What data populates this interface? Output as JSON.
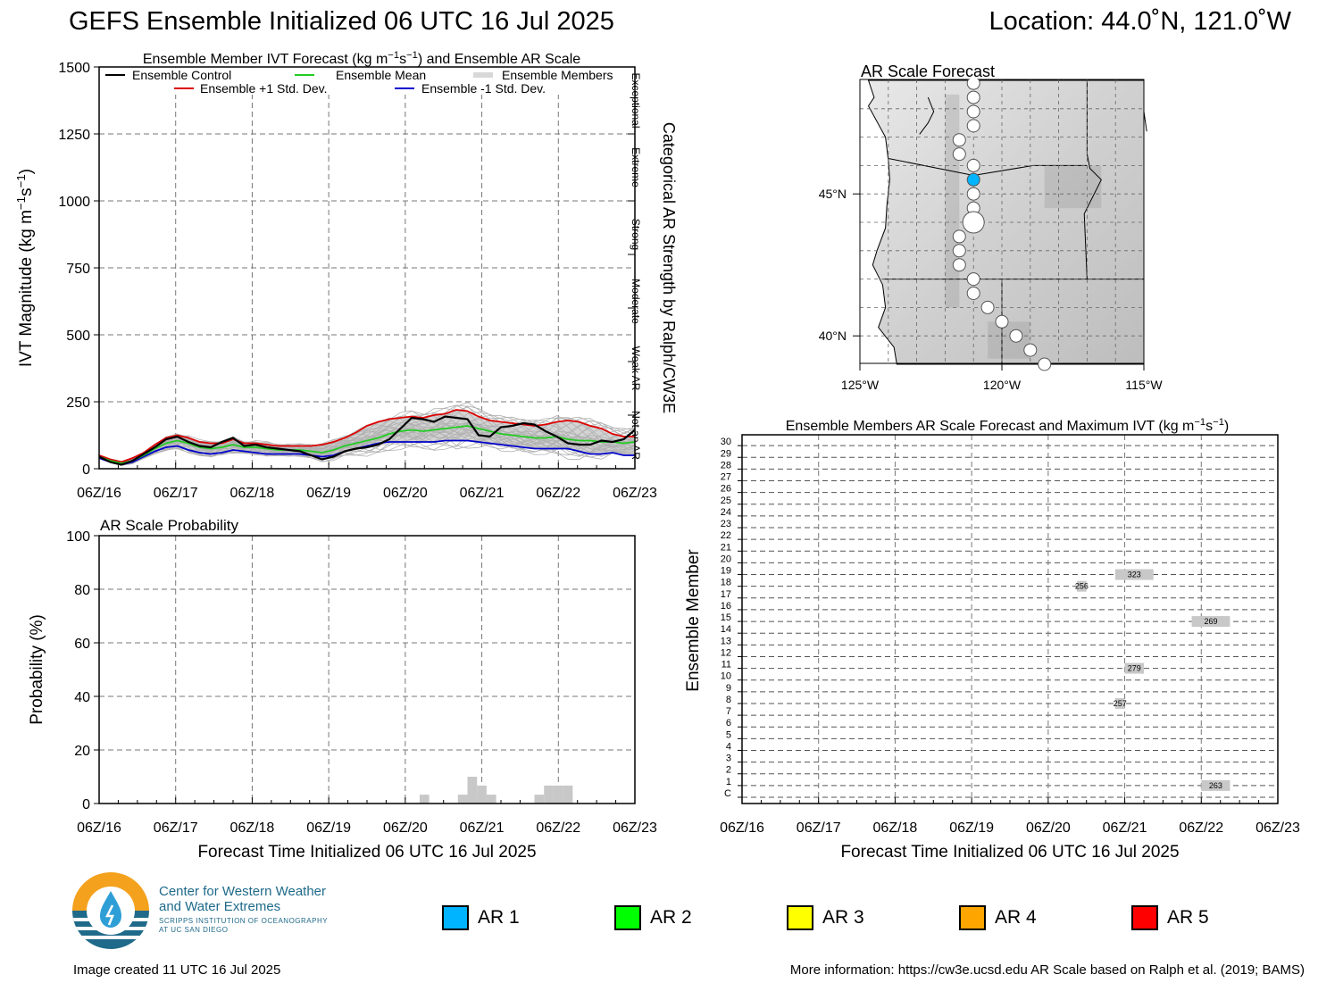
{
  "header": {
    "title": "GEFS Ensemble Initialized 06 UTC 16 Jul 2025",
    "location": "Location: 44.0˚N, 121.0˚W"
  },
  "colors": {
    "control": "#000000",
    "mean": "#22cc22",
    "plus1": "#dd0000",
    "minus1": "#0000cc",
    "members": "#b0b0b0",
    "spread": "#c8c8c8",
    "ar1": "#00b4ff",
    "ar2": "#00ff00",
    "ar3": "#ffff00",
    "ar4": "#ffa500",
    "ar5": "#ff0000"
  },
  "time_ticks": [
    "06Z/16",
    "06Z/17",
    "06Z/18",
    "06Z/19",
    "06Z/20",
    "06Z/21",
    "06Z/22",
    "06Z/23"
  ],
  "chart_data": [
    {
      "type": "line",
      "title": "Ensemble Member IVT Forecast (kg m⁻¹s⁻¹) and Ensemble AR Scale",
      "ylabel": "IVT Magnitude (kg m⁻¹s⁻¹)",
      "right_label": "Categorical AR Strength by Ralph/CW3E",
      "ylim": [
        0,
        1500
      ],
      "yticks": [
        "0",
        "250",
        "500",
        "750",
        "1000",
        "1250",
        "1500"
      ],
      "xlim_hours": [
        0,
        168
      ],
      "x_step_hours": 6,
      "categories_right": [
        "Not an AR",
        "Weak AR",
        "Moderate",
        "Strong",
        "Extreme",
        "Exceptional"
      ],
      "legend": {
        "control": "Ensemble Control",
        "mean": "Ensemble Mean",
        "members": "Ensemble Members",
        "plus1": "Ensemble +1 Std. Dev.",
        "minus1": "Ensemble -1 Std. Dev."
      },
      "series": [
        {
          "name": "Ensemble Control",
          "values": [
            45,
            25,
            15,
            30,
            55,
            80,
            110,
            120,
            100,
            85,
            80,
            100,
            115,
            85,
            90,
            80,
            75,
            70,
            65,
            50,
            35,
            45,
            65,
            75,
            80,
            90,
            110,
            150,
            190,
            185,
            175,
            195,
            190,
            185,
            125,
            120,
            155,
            160,
            170,
            165,
            140,
            120,
            95,
            90,
            90,
            105,
            100,
            110,
            145
          ]
        },
        {
          "name": "Ensemble Mean",
          "values": [
            45,
            30,
            20,
            30,
            50,
            75,
            95,
            105,
            95,
            80,
            75,
            80,
            90,
            80,
            80,
            75,
            70,
            70,
            70,
            65,
            60,
            70,
            85,
            95,
            105,
            115,
            130,
            140,
            145,
            140,
            145,
            150,
            155,
            160,
            150,
            140,
            130,
            125,
            120,
            115,
            115,
            120,
            110,
            105,
            105,
            100,
            100,
            95,
            100
          ]
        },
        {
          "name": "Ensemble +1 Std. Dev.",
          "values": [
            50,
            35,
            25,
            40,
            60,
            90,
            115,
            125,
            115,
            100,
            95,
            95,
            110,
            95,
            95,
            90,
            85,
            85,
            85,
            85,
            90,
            100,
            115,
            135,
            160,
            175,
            185,
            190,
            195,
            190,
            200,
            205,
            220,
            215,
            195,
            180,
            175,
            170,
            165,
            160,
            165,
            175,
            180,
            175,
            160,
            150,
            130,
            120,
            120
          ]
        },
        {
          "name": "Ensemble -1 Std. Dev.",
          "values": [
            40,
            25,
            15,
            25,
            45,
            65,
            80,
            85,
            70,
            60,
            55,
            60,
            70,
            65,
            60,
            55,
            55,
            55,
            55,
            50,
            45,
            50,
            65,
            75,
            85,
            95,
            100,
            100,
            100,
            100,
            100,
            105,
            105,
            105,
            100,
            95,
            90,
            85,
            80,
            75,
            75,
            75,
            75,
            65,
            55,
            55,
            60,
            50,
            50
          ]
        }
      ]
    },
    {
      "type": "bar",
      "title": "AR Scale Probability",
      "ylabel": "Probability (%)",
      "xlabel": "Forecast Time Initialized 06 UTC 16 Jul 2025",
      "ylim": [
        0,
        100
      ],
      "yticks": [
        "0",
        "20",
        "40",
        "60",
        "80",
        "100"
      ],
      "bars": [
        {
          "hour": 102,
          "value": 3.3
        },
        {
          "hour": 114,
          "value": 3.3
        },
        {
          "hour": 117,
          "value": 10
        },
        {
          "hour": 120,
          "value": 6.7
        },
        {
          "hour": 123,
          "value": 3.3
        },
        {
          "hour": 138,
          "value": 3.3
        },
        {
          "hour": 141,
          "value": 6.7
        },
        {
          "hour": 144,
          "value": 6.7
        },
        {
          "hour": 147,
          "value": 6.7
        }
      ]
    },
    {
      "type": "table",
      "title": "Ensemble Members AR Scale Forecast and Maximum IVT (kg m⁻¹s⁻¹)",
      "ylabel": "Ensemble Member",
      "xlabel": "Forecast Time Initialized 06 UTC 16 Jul 2025",
      "member_labels": [
        "C",
        "1",
        "2",
        "3",
        "4",
        "5",
        "6",
        "7",
        "8",
        "9",
        "10",
        "11",
        "12",
        "13",
        "14",
        "15",
        "16",
        "17",
        "18",
        "19",
        "20",
        "21",
        "22",
        "23",
        "24",
        "25",
        "26",
        "27",
        "28",
        "29",
        "30"
      ],
      "segments": [
        {
          "member": 19,
          "start_hour": 117,
          "end_hour": 129,
          "max_ivt": "323"
        },
        {
          "member": 18,
          "start_hour": 105,
          "end_hour": 108,
          "max_ivt": "256"
        },
        {
          "member": 15,
          "start_hour": 141,
          "end_hour": 153,
          "max_ivt": "269"
        },
        {
          "member": 11,
          "start_hour": 120,
          "end_hour": 126,
          "max_ivt": "279"
        },
        {
          "member": 8,
          "start_hour": 117,
          "end_hour": 120,
          "max_ivt": "257"
        },
        {
          "member": 1,
          "start_hour": 144,
          "end_hour": 153,
          "max_ivt": "263"
        }
      ]
    }
  ],
  "map": {
    "title": "AR Scale Forecast",
    "lat_labels": [
      "45°N",
      "40°N"
    ],
    "lon_labels": [
      "125°W",
      "120°W",
      "115°W"
    ],
    "track": [
      {
        "lon": -121.0,
        "lat": 48.9
      },
      {
        "lon": -121.0,
        "lat": 48.4
      },
      {
        "lon": -121.0,
        "lat": 47.9
      },
      {
        "lon": -121.0,
        "lat": 47.4
      },
      {
        "lon": -121.5,
        "lat": 46.9
      },
      {
        "lon": -121.5,
        "lat": 46.4
      },
      {
        "lon": -121.0,
        "lat": 46.0
      },
      {
        "lon": -121.0,
        "lat": 45.5,
        "ar": 1
      },
      {
        "lon": -121.0,
        "lat": 45.0
      },
      {
        "lon": -121.0,
        "lat": 44.5
      },
      {
        "lon": -121.0,
        "lat": 44.0,
        "big": true
      },
      {
        "lon": -121.5,
        "lat": 43.5
      },
      {
        "lon": -121.5,
        "lat": 43.0
      },
      {
        "lon": -121.5,
        "lat": 42.5
      },
      {
        "lon": -121.0,
        "lat": 42.0
      },
      {
        "lon": -121.0,
        "lat": 41.5
      },
      {
        "lon": -120.5,
        "lat": 41.0
      },
      {
        "lon": -120.0,
        "lat": 40.5
      },
      {
        "lon": -119.5,
        "lat": 40.0
      },
      {
        "lon": -119.0,
        "lat": 39.5
      },
      {
        "lon": -118.5,
        "lat": 39.0
      }
    ]
  },
  "logo": {
    "line1": "Center for Western Weather",
    "line2": "and Water Extremes",
    "line3": "SCRIPPS INSTITUTION OF OCEANOGRAPHY",
    "line4": "AT UC SAN DIEGO"
  },
  "ar_legend": [
    {
      "label": "AR 1",
      "color": "#00b4ff"
    },
    {
      "label": "AR 2",
      "color": "#00ff00"
    },
    {
      "label": "AR 3",
      "color": "#ffff00"
    },
    {
      "label": "AR 4",
      "color": "#ffa500"
    },
    {
      "label": "AR 5",
      "color": "#ff0000"
    }
  ],
  "footer": {
    "created": "Image created 11 UTC 16 Jul 2025",
    "info": "More information: https://cw3e.ucsd.edu AR Scale based on Ralph et al. (2019; BAMS)"
  }
}
